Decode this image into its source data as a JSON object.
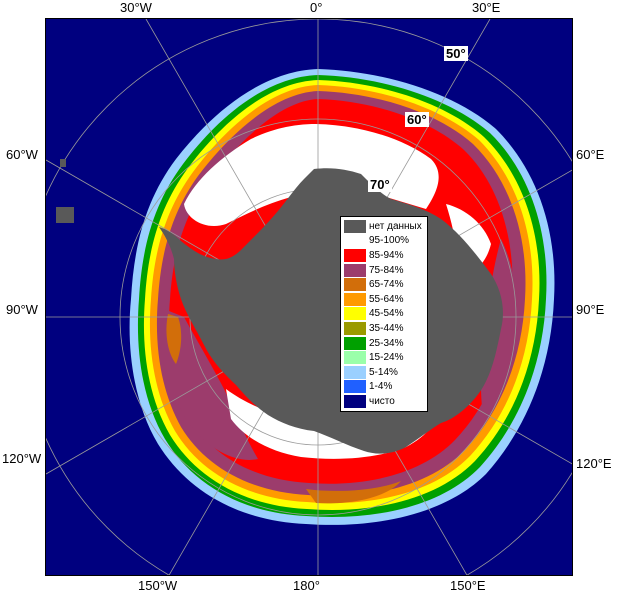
{
  "map": {
    "colors": {
      "ocean": "#00007f",
      "land": "#595959",
      "grid": "#9a9a9a",
      "deep_red": "#ff0000",
      "purple": "#9c3c6c",
      "orange": "#d26e0a",
      "white": "#ffffff"
    },
    "lon_labels": {
      "w30": "30°W",
      "e0": "0°",
      "e30": "30°E",
      "w60": "60°W",
      "e60": "60°E",
      "w90": "90°W",
      "e90": "90°E",
      "w120": "120°W",
      "e120": "120°E",
      "w150": "150°W",
      "s180": "180°",
      "e150": "150°E"
    },
    "lat_labels": {
      "lat50": "50°",
      "lat60": "60°",
      "lat70": "70°"
    }
  },
  "legend": {
    "items": [
      {
        "label": "нет данных",
        "color": "#595959"
      },
      {
        "label": "95-100%",
        "color": "#ffffff"
      },
      {
        "label": "85-94%",
        "color": "#ff0000"
      },
      {
        "label": "75-84%",
        "color": "#9c3c6c"
      },
      {
        "label": "65-74%",
        "color": "#d26e0a"
      },
      {
        "label": "55-64%",
        "color": "#ff9a00"
      },
      {
        "label": "45-54%",
        "color": "#ffff00"
      },
      {
        "label": "35-44%",
        "color": "#9a9a00"
      },
      {
        "label": "25-34%",
        "color": "#00a000"
      },
      {
        "label": "15-24%",
        "color": "#9affaa"
      },
      {
        "label": "5-14%",
        "color": "#9ad0ff"
      },
      {
        "label": "1-4%",
        "color": "#2060ff"
      },
      {
        "label": "чисто",
        "color": "#00007f"
      }
    ]
  }
}
